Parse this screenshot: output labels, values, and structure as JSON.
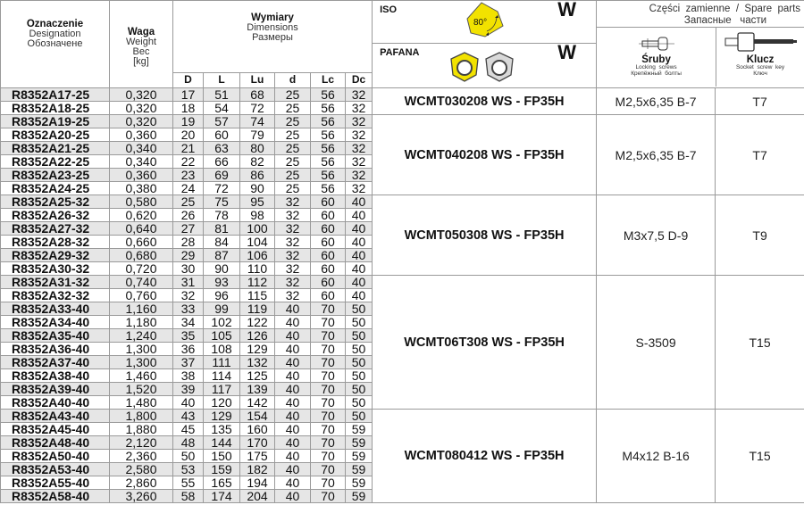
{
  "header": {
    "designation": [
      "Oznaczenie",
      "Designation",
      "Обозначене"
    ],
    "weight": [
      "Waga",
      "Weight",
      "Вес",
      "[kg]"
    ],
    "dimensions": [
      "Wymiary",
      "Dimensions",
      "Размеры"
    ],
    "dim_cols": [
      "D",
      "L",
      "Lu",
      "d",
      "Lc",
      "Dc"
    ],
    "iso_label": "ISO",
    "iso_code": "W",
    "iso_angle": "80°",
    "pafana_label": "PAFANA",
    "pafana_code": "W",
    "spare_parts_title": "Części  zamienne  /  Spare  parts",
    "spare_parts_ru": "Запасные   части",
    "screws": [
      "Śruby",
      "Locking  screws",
      "Крепёжный  болты"
    ],
    "key": [
      "Klucz",
      "Socket  screw  key",
      "Ключ"
    ]
  },
  "colors": {
    "insert_yellow": "#f2e200",
    "insert_grey": "#d9d9d9",
    "row_alt": "#e6e6e6"
  },
  "rows": [
    [
      "R8352A17-25",
      "0,320",
      "17",
      "51",
      "68",
      "25",
      "56",
      "32"
    ],
    [
      "R8352A18-25",
      "0,320",
      "18",
      "54",
      "72",
      "25",
      "56",
      "32"
    ],
    [
      "R8352A19-25",
      "0,320",
      "19",
      "57",
      "74",
      "25",
      "56",
      "32"
    ],
    [
      "R8352A20-25",
      "0,360",
      "20",
      "60",
      "79",
      "25",
      "56",
      "32"
    ],
    [
      "R8352A21-25",
      "0,340",
      "21",
      "63",
      "80",
      "25",
      "56",
      "32"
    ],
    [
      "R8352A22-25",
      "0,340",
      "22",
      "66",
      "82",
      "25",
      "56",
      "32"
    ],
    [
      "R8352A23-25",
      "0,360",
      "23",
      "69",
      "86",
      "25",
      "56",
      "32"
    ],
    [
      "R8352A24-25",
      "0,380",
      "24",
      "72",
      "90",
      "25",
      "56",
      "32"
    ],
    [
      "R8352A25-32",
      "0,580",
      "25",
      "75",
      "95",
      "32",
      "60",
      "40"
    ],
    [
      "R8352A26-32",
      "0,620",
      "26",
      "78",
      "98",
      "32",
      "60",
      "40"
    ],
    [
      "R8352A27-32",
      "0,640",
      "27",
      "81",
      "100",
      "32",
      "60",
      "40"
    ],
    [
      "R8352A28-32",
      "0,660",
      "28",
      "84",
      "104",
      "32",
      "60",
      "40"
    ],
    [
      "R8352A29-32",
      "0,680",
      "29",
      "87",
      "106",
      "32",
      "60",
      "40"
    ],
    [
      "R8352A30-32",
      "0,720",
      "30",
      "90",
      "110",
      "32",
      "60",
      "40"
    ],
    [
      "R8352A31-32",
      "0,740",
      "31",
      "93",
      "112",
      "32",
      "60",
      "40"
    ],
    [
      "R8352A32-32",
      "0,760",
      "32",
      "96",
      "115",
      "32",
      "60",
      "40"
    ],
    [
      "R8352A33-40",
      "1,160",
      "33",
      "99",
      "119",
      "40",
      "70",
      "50"
    ],
    [
      "R8352A34-40",
      "1,180",
      "34",
      "102",
      "122",
      "40",
      "70",
      "50"
    ],
    [
      "R8352A35-40",
      "1,240",
      "35",
      "105",
      "126",
      "40",
      "70",
      "50"
    ],
    [
      "R8352A36-40",
      "1,300",
      "36",
      "108",
      "129",
      "40",
      "70",
      "50"
    ],
    [
      "R8352A37-40",
      "1,300",
      "37",
      "111",
      "132",
      "40",
      "70",
      "50"
    ],
    [
      "R8352A38-40",
      "1,460",
      "38",
      "114",
      "125",
      "40",
      "70",
      "50"
    ],
    [
      "R8352A39-40",
      "1,520",
      "39",
      "117",
      "139",
      "40",
      "70",
      "50"
    ],
    [
      "R8352A40-40",
      "1,480",
      "40",
      "120",
      "142",
      "40",
      "70",
      "50"
    ],
    [
      "R8352A43-40",
      "1,800",
      "43",
      "129",
      "154",
      "40",
      "70",
      "50"
    ],
    [
      "R8352A45-40",
      "1,880",
      "45",
      "135",
      "160",
      "40",
      "70",
      "59"
    ],
    [
      "R8352A48-40",
      "2,120",
      "48",
      "144",
      "170",
      "40",
      "70",
      "59"
    ],
    [
      "R8352A50-40",
      "2,360",
      "50",
      "150",
      "175",
      "40",
      "70",
      "59"
    ],
    [
      "R8352A53-40",
      "2,580",
      "53",
      "159",
      "182",
      "40",
      "70",
      "59"
    ],
    [
      "R8352A55-40",
      "2,860",
      "55",
      "165",
      "194",
      "40",
      "70",
      "59"
    ],
    [
      "R8352A58-40",
      "3,260",
      "58",
      "174",
      "204",
      "40",
      "70",
      "59"
    ]
  ],
  "groups": [
    {
      "span": 2,
      "insert": "WCMT030208 WS - FP35H",
      "screw": "M2,5x6,35 B-7",
      "key": "T7"
    },
    {
      "span": 6,
      "insert": "WCMT040208 WS - FP35H",
      "screw": "M2,5x6,35 B-7",
      "key": "T7"
    },
    {
      "span": 6,
      "insert": "WCMT050308 WS - FP35H",
      "screw": "M3x7,5 D-9",
      "key": "T9"
    },
    {
      "span": 10,
      "insert": "WCMT06T308 WS - FP35H",
      "screw": "S-3509",
      "key": "T15"
    },
    {
      "span": 7,
      "insert": "WCMT080412 WS - FP35H",
      "screw": "M4x12 B-16",
      "key": "T15"
    }
  ]
}
